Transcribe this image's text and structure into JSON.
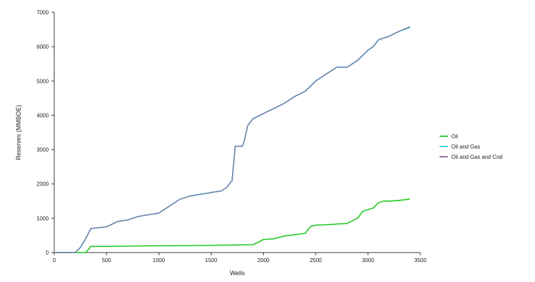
{
  "chart_data": {
    "type": "line",
    "title": "",
    "xlabel": "Wells",
    "ylabel": "Reserves (MMBOE)",
    "xlim": [
      0,
      3500
    ],
    "ylim": [
      0,
      7000
    ],
    "xticks": [
      0,
      500,
      1000,
      1500,
      2000,
      2500,
      3000,
      3500
    ],
    "yticks": [
      0,
      1000,
      2000,
      3000,
      4000,
      5000,
      6000,
      7000
    ],
    "grid": false,
    "legend_position": "right",
    "series": [
      {
        "name": "Oil",
        "color": "#33cc33",
        "points": [
          [
            0,
            0
          ],
          [
            300,
            0
          ],
          [
            350,
            180
          ],
          [
            500,
            180
          ],
          [
            1000,
            200
          ],
          [
            1500,
            210
          ],
          [
            1900,
            230
          ],
          [
            1950,
            300
          ],
          [
            2000,
            380
          ],
          [
            2100,
            400
          ],
          [
            2200,
            480
          ],
          [
            2300,
            520
          ],
          [
            2400,
            560
          ],
          [
            2450,
            760
          ],
          [
            2500,
            800
          ],
          [
            2600,
            810
          ],
          [
            2700,
            830
          ],
          [
            2800,
            850
          ],
          [
            2900,
            1000
          ],
          [
            2950,
            1200
          ],
          [
            3000,
            1250
          ],
          [
            3050,
            1300
          ],
          [
            3100,
            1450
          ],
          [
            3150,
            1500
          ],
          [
            3200,
            1500
          ],
          [
            3300,
            1520
          ],
          [
            3400,
            1560
          ]
        ]
      },
      {
        "name": "Oil and Gas",
        "color": "#33d6d6",
        "points": [
          [
            0,
            0
          ],
          [
            200,
            0
          ],
          [
            250,
            150
          ],
          [
            300,
            400
          ],
          [
            350,
            700
          ],
          [
            500,
            750
          ],
          [
            600,
            900
          ],
          [
            700,
            950
          ],
          [
            800,
            1050
          ],
          [
            900,
            1100
          ],
          [
            1000,
            1150
          ],
          [
            1100,
            1350
          ],
          [
            1200,
            1550
          ],
          [
            1300,
            1650
          ],
          [
            1400,
            1700
          ],
          [
            1500,
            1750
          ],
          [
            1600,
            1800
          ],
          [
            1650,
            1900
          ],
          [
            1700,
            2100
          ],
          [
            1730,
            3100
          ],
          [
            1800,
            3100
          ],
          [
            1820,
            3300
          ],
          [
            1850,
            3700
          ],
          [
            1900,
            3900
          ],
          [
            2000,
            4050
          ],
          [
            2100,
            4200
          ],
          [
            2200,
            4350
          ],
          [
            2300,
            4550
          ],
          [
            2400,
            4700
          ],
          [
            2500,
            5000
          ],
          [
            2600,
            5200
          ],
          [
            2700,
            5400
          ],
          [
            2800,
            5400
          ],
          [
            2900,
            5600
          ],
          [
            3000,
            5900
          ],
          [
            3050,
            6000
          ],
          [
            3100,
            6200
          ],
          [
            3200,
            6300
          ],
          [
            3300,
            6450
          ],
          [
            3400,
            6560
          ]
        ]
      },
      {
        "name": "Oil and Gas and Cnd",
        "color": "#8a6a9e",
        "points": [
          [
            0,
            0
          ],
          [
            200,
            0
          ],
          [
            250,
            150
          ],
          [
            300,
            400
          ],
          [
            350,
            700
          ],
          [
            500,
            750
          ],
          [
            600,
            900
          ],
          [
            700,
            950
          ],
          [
            800,
            1050
          ],
          [
            900,
            1100
          ],
          [
            1000,
            1150
          ],
          [
            1100,
            1350
          ],
          [
            1200,
            1550
          ],
          [
            1300,
            1650
          ],
          [
            1400,
            1700
          ],
          [
            1500,
            1750
          ],
          [
            1600,
            1800
          ],
          [
            1650,
            1900
          ],
          [
            1700,
            2100
          ],
          [
            1730,
            3100
          ],
          [
            1800,
            3100
          ],
          [
            1820,
            3300
          ],
          [
            1850,
            3700
          ],
          [
            1900,
            3900
          ],
          [
            2000,
            4050
          ],
          [
            2100,
            4200
          ],
          [
            2200,
            4350
          ],
          [
            2300,
            4550
          ],
          [
            2400,
            4700
          ],
          [
            2500,
            5000
          ],
          [
            2600,
            5200
          ],
          [
            2700,
            5400
          ],
          [
            2800,
            5400
          ],
          [
            2900,
            5600
          ],
          [
            3000,
            5900
          ],
          [
            3050,
            6000
          ],
          [
            3100,
            6200
          ],
          [
            3200,
            6300
          ],
          [
            3300,
            6450
          ],
          [
            3400,
            6580
          ]
        ]
      }
    ]
  }
}
